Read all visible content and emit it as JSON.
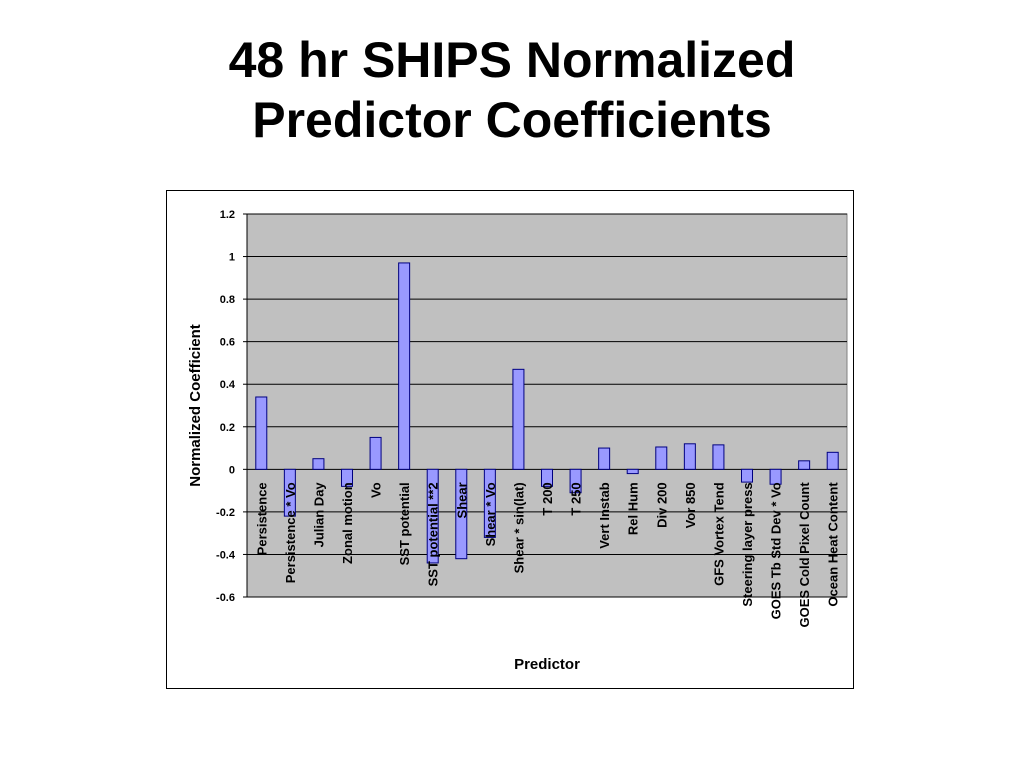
{
  "slide": {
    "title_line1": "48 hr SHIPS Normalized",
    "title_line2": "Predictor Coefficients"
  },
  "colors": {
    "plot_background": "#c0c0c0",
    "bar_fill": "#9999ff",
    "bar_stroke": "#000080",
    "gridline": "#000000"
  },
  "chart_data": {
    "type": "bar",
    "title": "",
    "xlabel": "Predictor",
    "ylabel": "Normalized Coefficient",
    "ylim": [
      -0.6,
      1.2
    ],
    "yticks": [
      "1.2",
      "1",
      "0.8",
      "0.6",
      "0.4",
      "0.2",
      "0",
      "-0.2",
      "-0.4",
      "-0.6"
    ],
    "grid": true,
    "legend": "none",
    "categories": [
      "Persistence",
      "Persistence * Vo",
      "Julian Day",
      "Zonal motion",
      "Vo",
      "SST potential",
      "SST potential **2",
      "Shear",
      "Shear * Vo",
      "Shear * sin(lat)",
      "T 200",
      "T 250",
      "Vert Instab",
      "Rel Hum",
      "Div 200",
      "Vor 850",
      "GFS Vortex Tend",
      "Steering layer press",
      "GOES Tb Std Dev * Vo",
      "GOES Cold Pixel Count",
      "Ocean Heat Content"
    ],
    "values": [
      0.34,
      -0.22,
      0.05,
      -0.08,
      0.15,
      0.97,
      -0.44,
      -0.42,
      -0.32,
      0.47,
      -0.08,
      -0.11,
      0.1,
      -0.02,
      0.105,
      0.12,
      0.115,
      -0.06,
      -0.07,
      0.04,
      0.08
    ]
  }
}
